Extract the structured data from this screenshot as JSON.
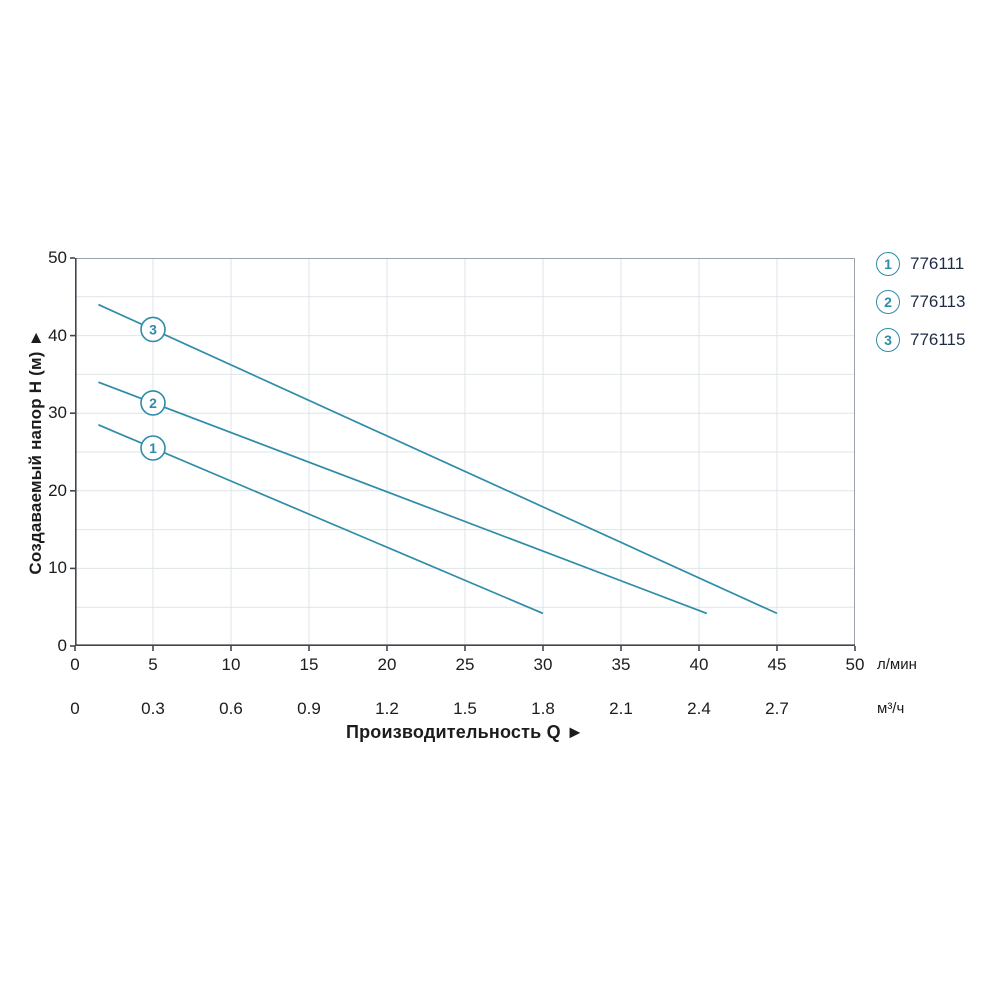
{
  "axes": {
    "y_title": "Создаваемый напор H (м) ►",
    "x_title": "Производительность Q ►",
    "primary_unit": "л/мин",
    "secondary_unit": "м³/ч"
  },
  "legend": {
    "items": [
      {
        "id": "1",
        "code": "776111"
      },
      {
        "id": "2",
        "code": "776113"
      },
      {
        "id": "3",
        "code": "776115"
      }
    ]
  },
  "colors": {
    "line": "#2f8ca8",
    "grid": "#dfe4e8",
    "frame": "#9aa1a8",
    "axis": "#41474d",
    "text": "#1b1c1e",
    "legend_text": "#1e2d45"
  },
  "chart_data": {
    "type": "line",
    "title": "",
    "xlabel": "Производительность Q (л/мин)",
    "ylabel": "Создаваемый напор H (м)",
    "xlim": [
      0,
      50
    ],
    "ylim": [
      0,
      50
    ],
    "grid": true,
    "legend_position": "top-right-outside",
    "x_ticks": [
      0,
      5,
      10,
      15,
      20,
      25,
      30,
      35,
      40,
      45,
      50
    ],
    "y_ticks": [
      0,
      10,
      20,
      30,
      40,
      50
    ],
    "x_secondary_ticks": [
      "0",
      "0.3",
      "0.6",
      "0.9",
      "1.2",
      "1.5",
      "1.8",
      "2.1",
      "2.4",
      "2.7"
    ],
    "x_secondary_to_primary_factor": 16.6667,
    "series": [
      {
        "name": "776111",
        "marker_label": "1",
        "marker_x": 5,
        "points": [
          [
            1.5,
            28.5
          ],
          [
            30,
            4.2
          ]
        ]
      },
      {
        "name": "776113",
        "marker_label": "2",
        "marker_x": 5,
        "points": [
          [
            1.5,
            34
          ],
          [
            40.5,
            4.2
          ]
        ]
      },
      {
        "name": "776115",
        "marker_label": "3",
        "marker_x": 5,
        "points": [
          [
            1.5,
            44
          ],
          [
            45,
            4.2
          ]
        ]
      }
    ]
  }
}
